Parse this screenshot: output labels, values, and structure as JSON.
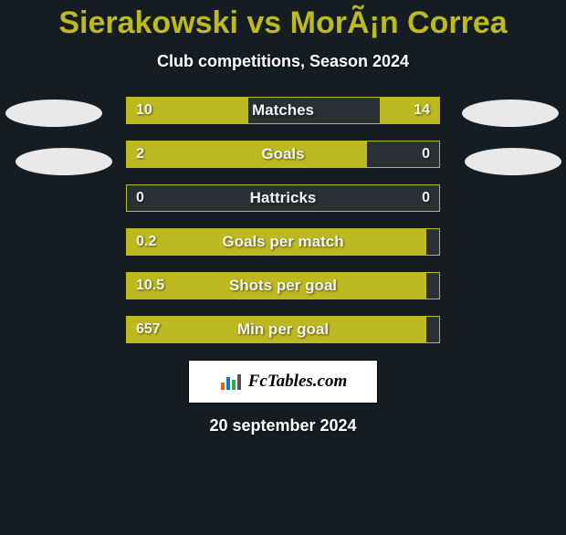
{
  "colors": {
    "background": "#161d22",
    "accent": "#bdb921",
    "bar_track": "#2a3036",
    "text": "#ffffff",
    "ellipse": "#e9e9e9",
    "logo_bg": "#ffffff",
    "logo_text": "#000000"
  },
  "title": "Sierakowski vs MorÃ¡n Correa",
  "subtitle": "Club competitions, Season 2024",
  "date": "20 september 2024",
  "logo": "FcTables.com",
  "bars": [
    {
      "label": "Matches",
      "left": "10",
      "right": "14",
      "left_pct": 39,
      "right_pct": 19
    },
    {
      "label": "Goals",
      "left": "2",
      "right": "0",
      "left_pct": 77,
      "right_pct": 0
    },
    {
      "label": "Hattricks",
      "left": "0",
      "right": "0",
      "left_pct": 0,
      "right_pct": 0
    },
    {
      "label": "Goals per match",
      "left": "0.2",
      "right": "",
      "left_pct": 96,
      "right_pct": 0
    },
    {
      "label": "Shots per goal",
      "left": "10.5",
      "right": "",
      "left_pct": 96,
      "right_pct": 0
    },
    {
      "label": "Min per goal",
      "left": "657",
      "right": "",
      "left_pct": 96,
      "right_pct": 0
    }
  ]
}
